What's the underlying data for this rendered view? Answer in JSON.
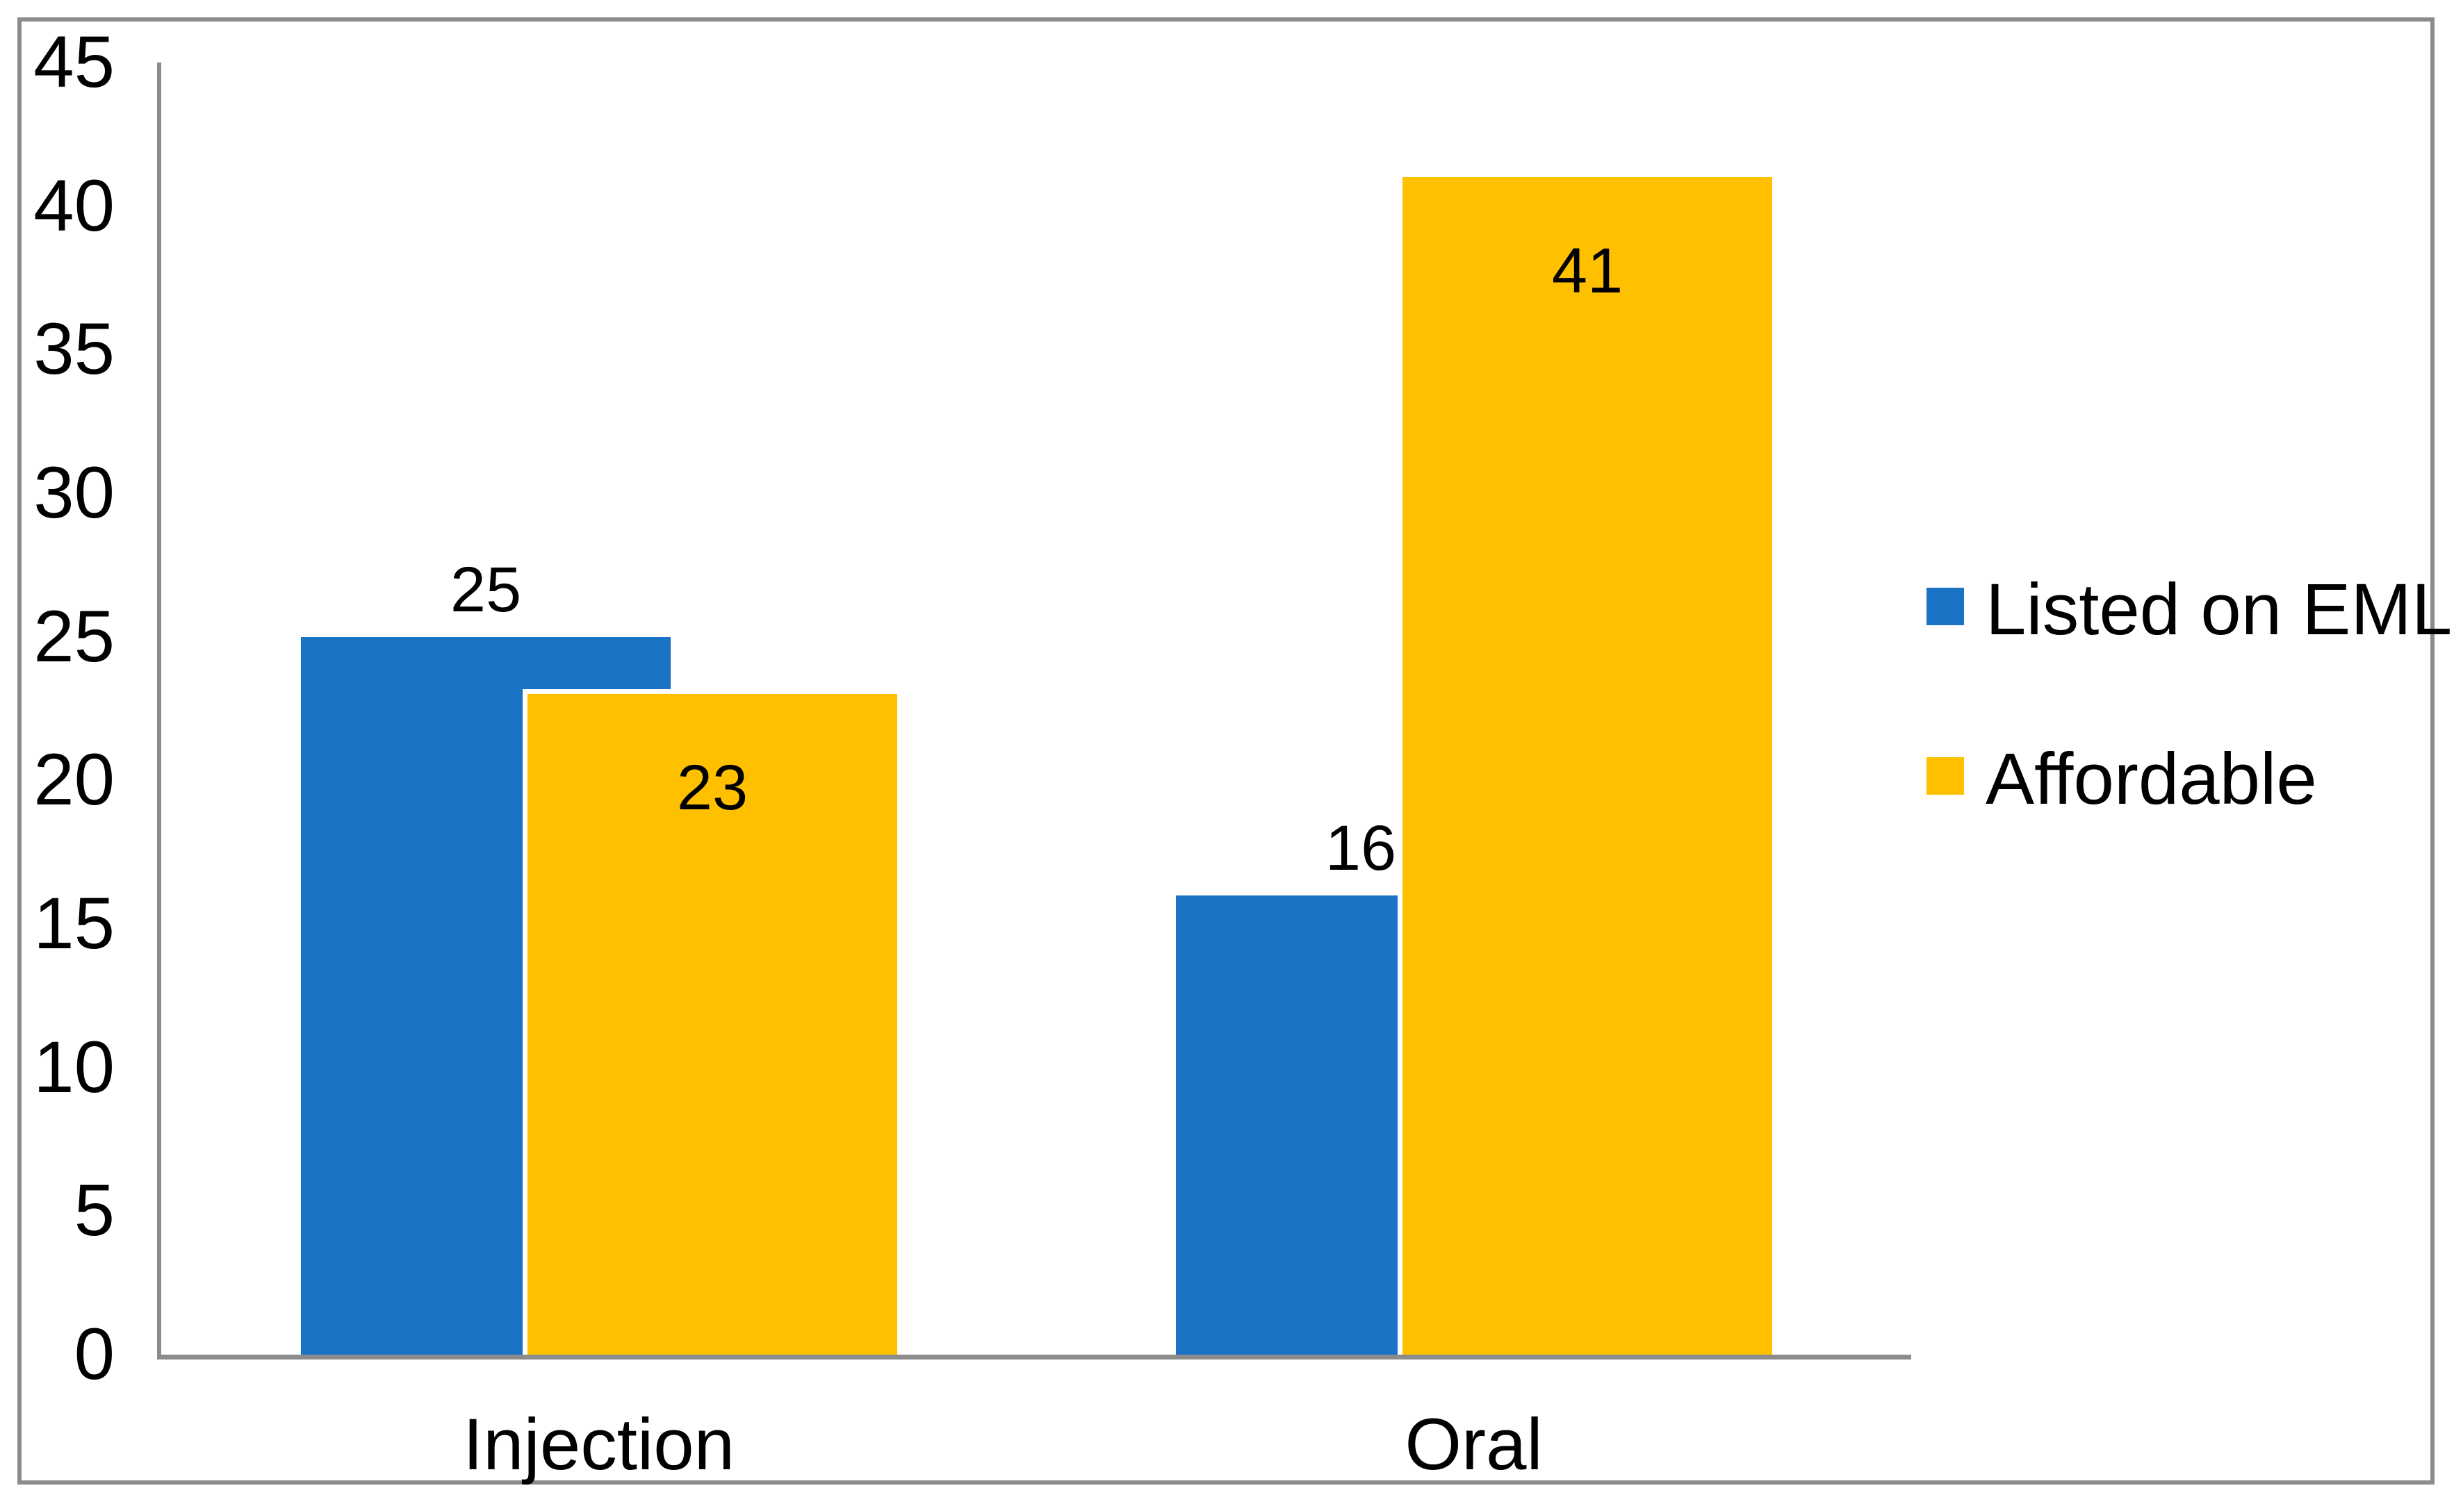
{
  "chart_data": {
    "type": "bar",
    "title": "",
    "xlabel": "",
    "ylabel": "",
    "categories": [
      "Injection",
      "Oral"
    ],
    "series": [
      {
        "name": "Listed on EML",
        "color": "#1B73C6",
        "values": [
          25,
          16
        ],
        "data_labels": [
          "25",
          "16"
        ],
        "label_placement": "outside-end",
        "outline": null
      },
      {
        "name": "Affordable",
        "color": "#FFC000",
        "values": [
          23,
          41
        ],
        "data_labels": [
          "23",
          "41"
        ],
        "label_placement": "inside-end",
        "outline": "#FFFFFF"
      }
    ],
    "ylim": [
      0,
      45
    ],
    "ytick_step": 5,
    "yticks": [
      "0",
      "5",
      "10",
      "15",
      "20",
      "25",
      "30",
      "35",
      "40",
      "45"
    ],
    "grid": false,
    "legend_position": "right",
    "legend_entries": [
      "Listed on EML",
      "Affordable"
    ],
    "axis_color": "#8C8C8C",
    "text_color": "#000000",
    "background_color": "#FFFFFF"
  }
}
